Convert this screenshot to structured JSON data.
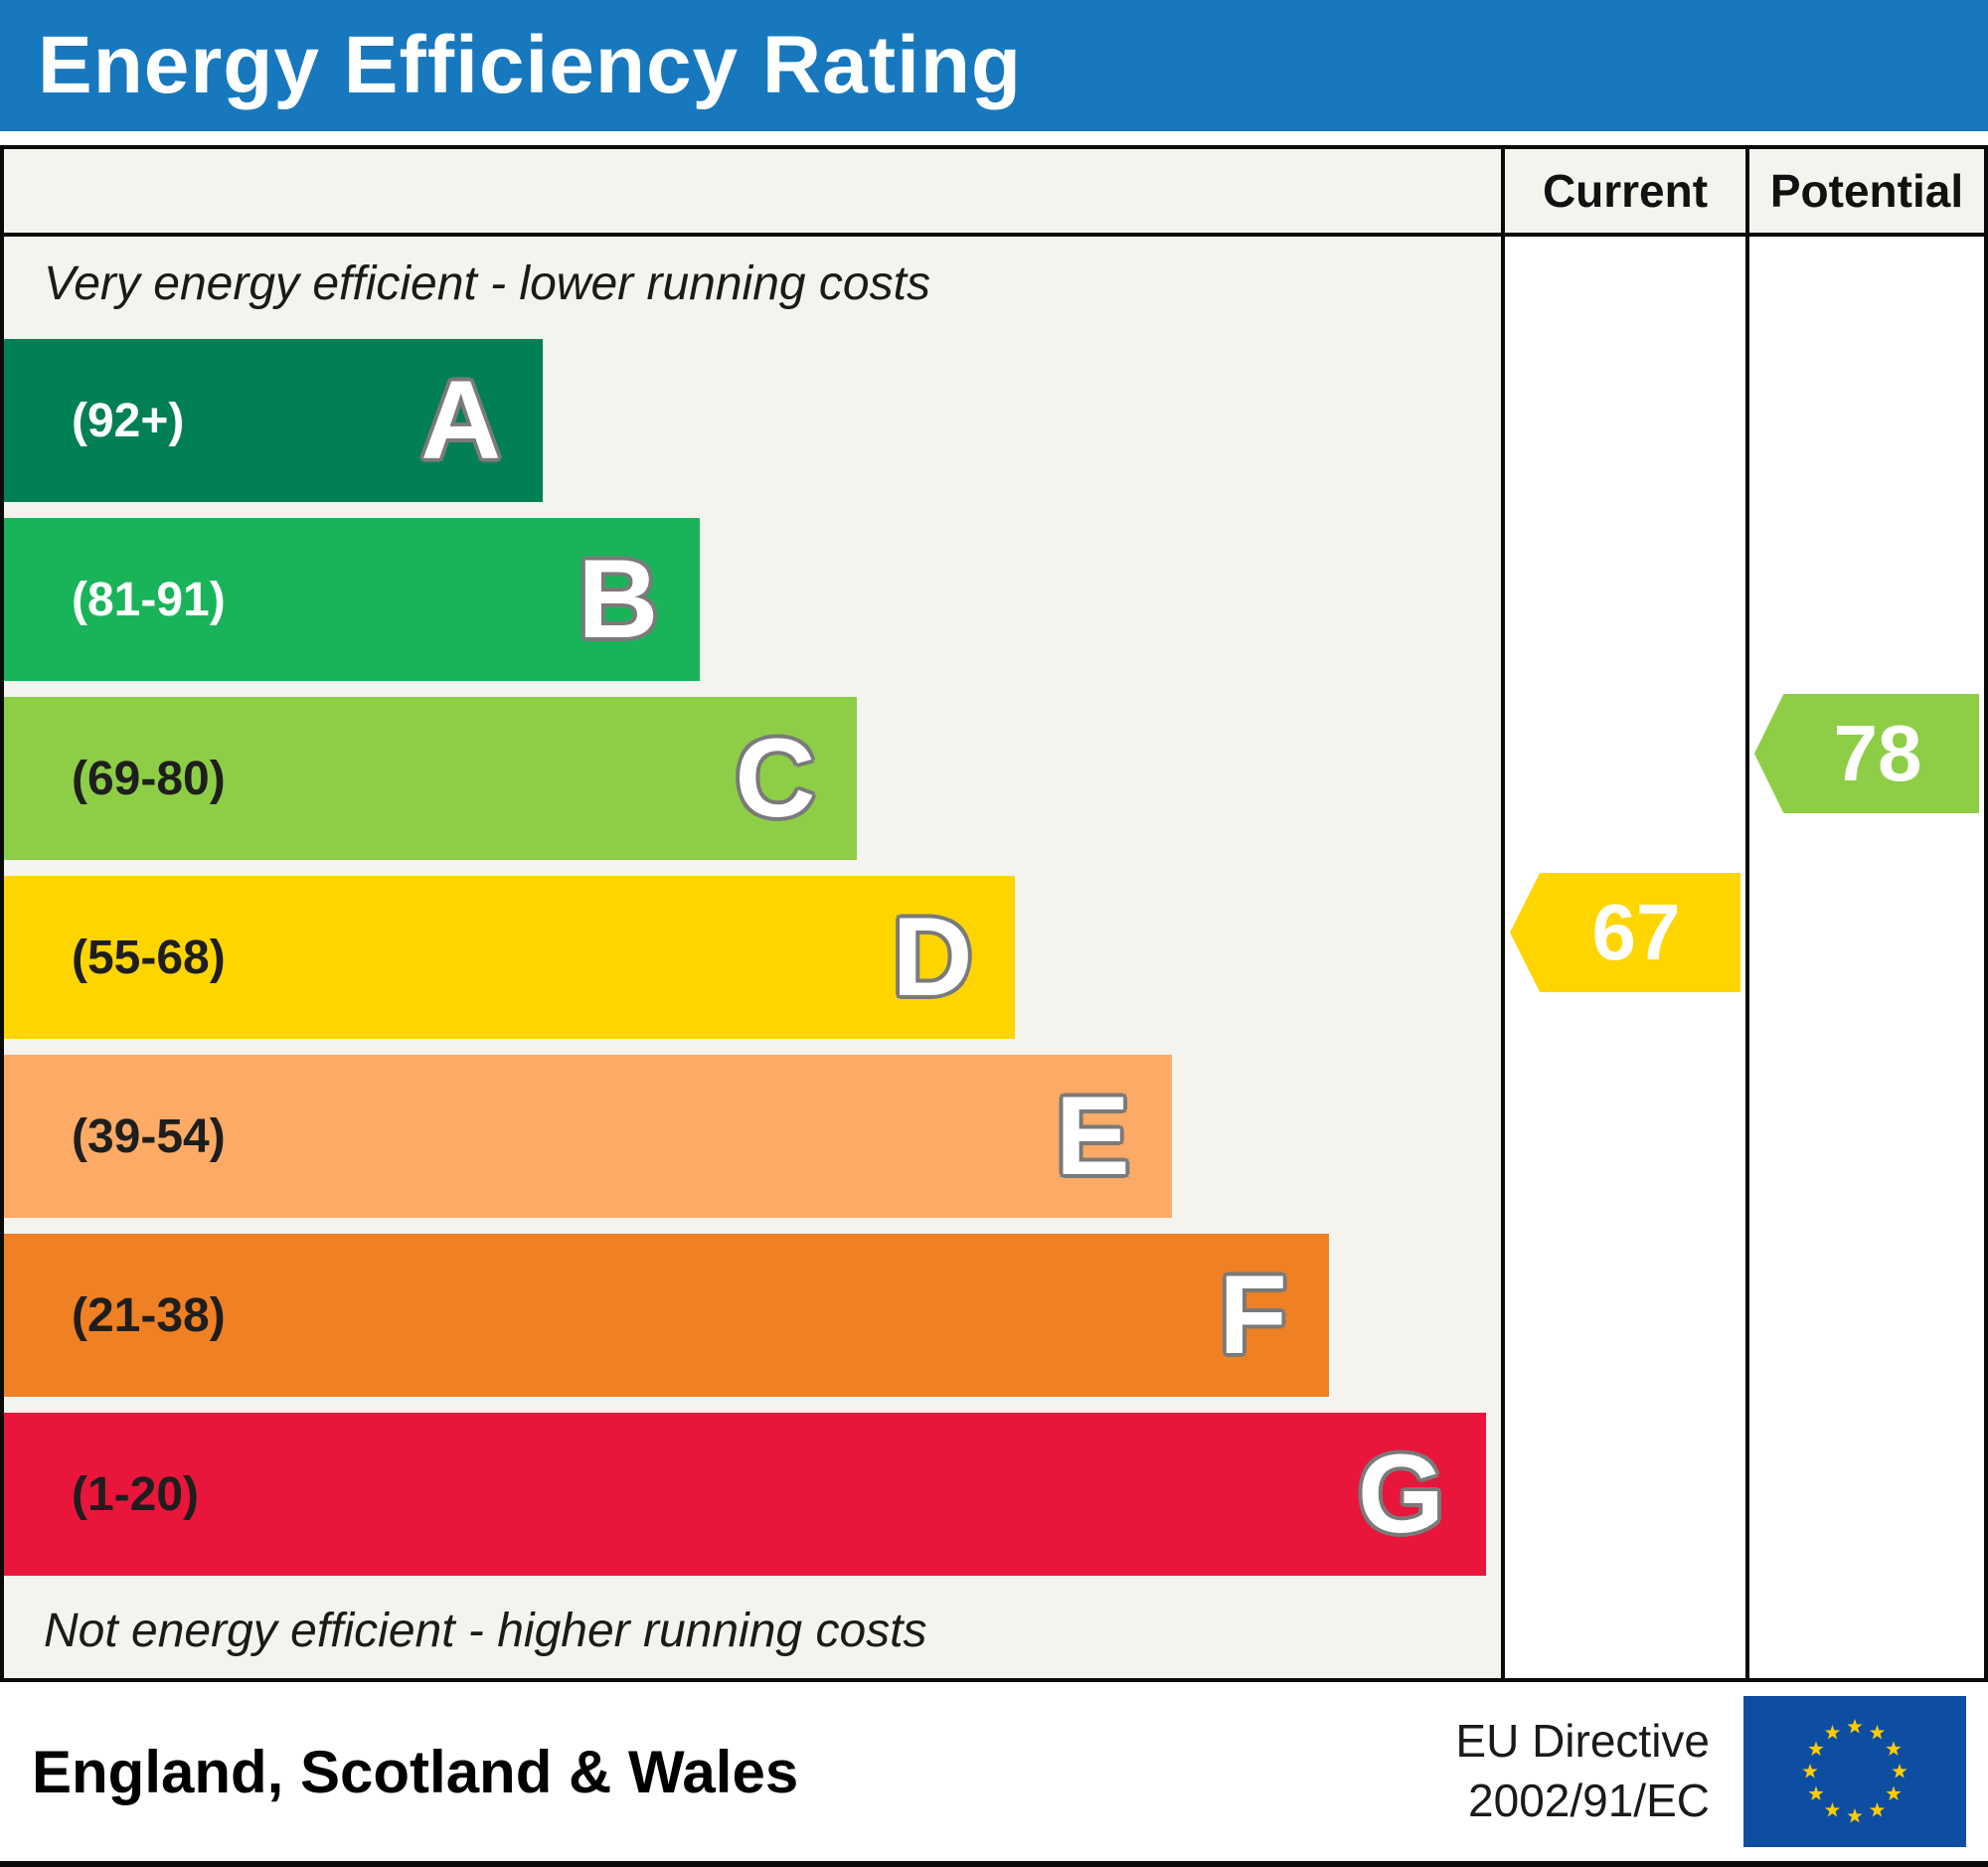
{
  "title": "Energy Efficiency Rating",
  "columns": {
    "current": "Current",
    "potential": "Potential"
  },
  "top_note": "Very energy efficient - lower running costs",
  "bottom_note": "Not energy efficient - higher running costs",
  "bands": [
    {
      "letter": "A",
      "range": "(92+)",
      "color": "#008054",
      "text_color": "#ffffff",
      "width_pct": 36
    },
    {
      "letter": "B",
      "range": "(81-91)",
      "color": "#19b459",
      "text_color": "#ffffff",
      "width_pct": 46.5
    },
    {
      "letter": "C",
      "range": "(69-80)",
      "color": "#8dce46",
      "text_color": "#1e1e1e",
      "width_pct": 57
    },
    {
      "letter": "D",
      "range": "(55-68)",
      "color": "#ffd500",
      "text_color": "#1e1e1e",
      "width_pct": 67.5
    },
    {
      "letter": "E",
      "range": "(39-54)",
      "color": "#fcaa65",
      "text_color": "#1e1e1e",
      "width_pct": 78
    },
    {
      "letter": "F",
      "range": "(21-38)",
      "color": "#ef8023",
      "text_color": "#1e1e1e",
      "width_pct": 88.5
    },
    {
      "letter": "G",
      "range": "(1-20)",
      "color": "#e9153b",
      "text_color": "#1e1e1e",
      "width_pct": 99
    }
  ],
  "current": {
    "value": "67",
    "color": "#ffd500",
    "band_index": 3
  },
  "potential": {
    "value": "78",
    "color": "#8dce46",
    "band_index": 2
  },
  "footer": {
    "region": "England, Scotland & Wales",
    "directive_line1": "EU Directive",
    "directive_line2": "2002/91/EC"
  },
  "chart_data": {
    "type": "bar",
    "title": "Energy Efficiency Rating",
    "categories": [
      "A (92+)",
      "B (81-91)",
      "C (69-80)",
      "D (55-68)",
      "E (39-54)",
      "F (21-38)",
      "G (1-20)"
    ],
    "band_colors": [
      "#008054",
      "#19b459",
      "#8dce46",
      "#ffd500",
      "#fcaa65",
      "#ef8023",
      "#e9153b"
    ],
    "bar_widths_pct": [
      36,
      46.5,
      57,
      67.5,
      78,
      88.5,
      99
    ],
    "value_range": [
      1,
      100
    ],
    "series": [
      {
        "name": "Current",
        "value": 67,
        "band": "D",
        "color": "#ffd500"
      },
      {
        "name": "Potential",
        "value": 78,
        "band": "C",
        "color": "#8dce46"
      }
    ],
    "top_annotation": "Very energy efficient - lower running costs",
    "bottom_annotation": "Not energy efficient - higher running costs",
    "region": "England, Scotland & Wales",
    "directive": "EU Directive 2002/91/EC",
    "legend_position": "right-columns",
    "grid": false
  }
}
